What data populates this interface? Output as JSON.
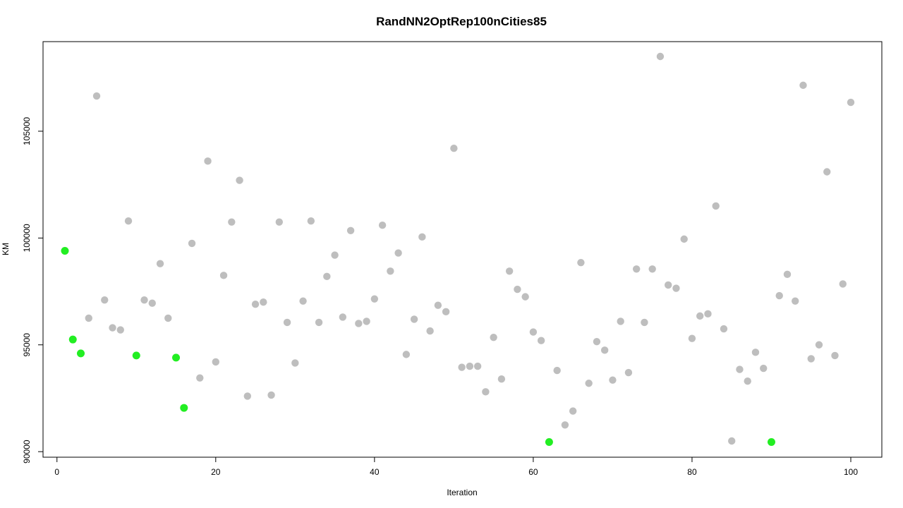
{
  "chart_data": {
    "type": "scatter",
    "title": "RandNN2OptRep100nCities85",
    "xlabel": "Iteration",
    "ylabel": "KM",
    "xlim": [
      1,
      100
    ],
    "ylim": [
      90500,
      108500
    ],
    "xticks": [
      0,
      20,
      40,
      60,
      80,
      100
    ],
    "yticks": [
      90000,
      95000,
      100000,
      105000
    ],
    "xtick_labels": [
      "0",
      "20",
      "40",
      "60",
      "80",
      "100"
    ],
    "ytick_labels": [
      "90000",
      "95000",
      "100000",
      "105000"
    ],
    "grid": false,
    "colors": {
      "normal": "#bebebe",
      "highlight": "#22ee22"
    },
    "x": [
      1,
      2,
      3,
      4,
      5,
      6,
      7,
      8,
      9,
      10,
      11,
      12,
      13,
      14,
      15,
      16,
      17,
      18,
      19,
      20,
      21,
      22,
      23,
      24,
      25,
      26,
      27,
      28,
      29,
      30,
      31,
      32,
      33,
      34,
      35,
      36,
      37,
      38,
      39,
      40,
      41,
      42,
      43,
      44,
      45,
      46,
      47,
      48,
      49,
      50,
      51,
      52,
      53,
      54,
      55,
      56,
      57,
      58,
      59,
      60,
      61,
      62,
      63,
      64,
      65,
      66,
      67,
      68,
      69,
      70,
      71,
      72,
      73,
      74,
      75,
      76,
      77,
      78,
      79,
      80,
      81,
      82,
      83,
      84,
      85,
      86,
      87,
      88,
      89,
      90,
      91,
      92,
      93,
      94,
      95,
      96,
      97,
      98,
      99,
      100
    ],
    "y": [
      99400,
      95250,
      94600,
      96250,
      106650,
      97100,
      95800,
      95700,
      100800,
      94500,
      97100,
      96950,
      98800,
      96250,
      94400,
      92050,
      99750,
      93450,
      103600,
      94200,
      98250,
      100750,
      102700,
      92600,
      96900,
      97000,
      92650,
      100750,
      96050,
      94150,
      97050,
      100800,
      96050,
      98200,
      99200,
      96300,
      100350,
      96000,
      96100,
      97150,
      100600,
      98450,
      99300,
      94550,
      96200,
      100050,
      95650,
      96850,
      96550,
      104200,
      93950,
      94000,
      94000,
      92800,
      95350,
      93400,
      98450,
      97600,
      97250,
      95600,
      95200,
      90450,
      93800,
      91250,
      91900,
      98850,
      93200,
      95150,
      94750,
      93350,
      96100,
      93700,
      98550,
      96050,
      98550,
      108500,
      97800,
      97650,
      99950,
      95300,
      96350,
      96450,
      101500,
      95750,
      90500,
      93850,
      93300,
      94650,
      93900,
      90450,
      97300,
      98300,
      97050,
      107150,
      94350,
      95000,
      103100,
      94500,
      97850,
      106350
    ],
    "highlighted": [
      1,
      2,
      3,
      10,
      15,
      16,
      62,
      90
    ]
  }
}
